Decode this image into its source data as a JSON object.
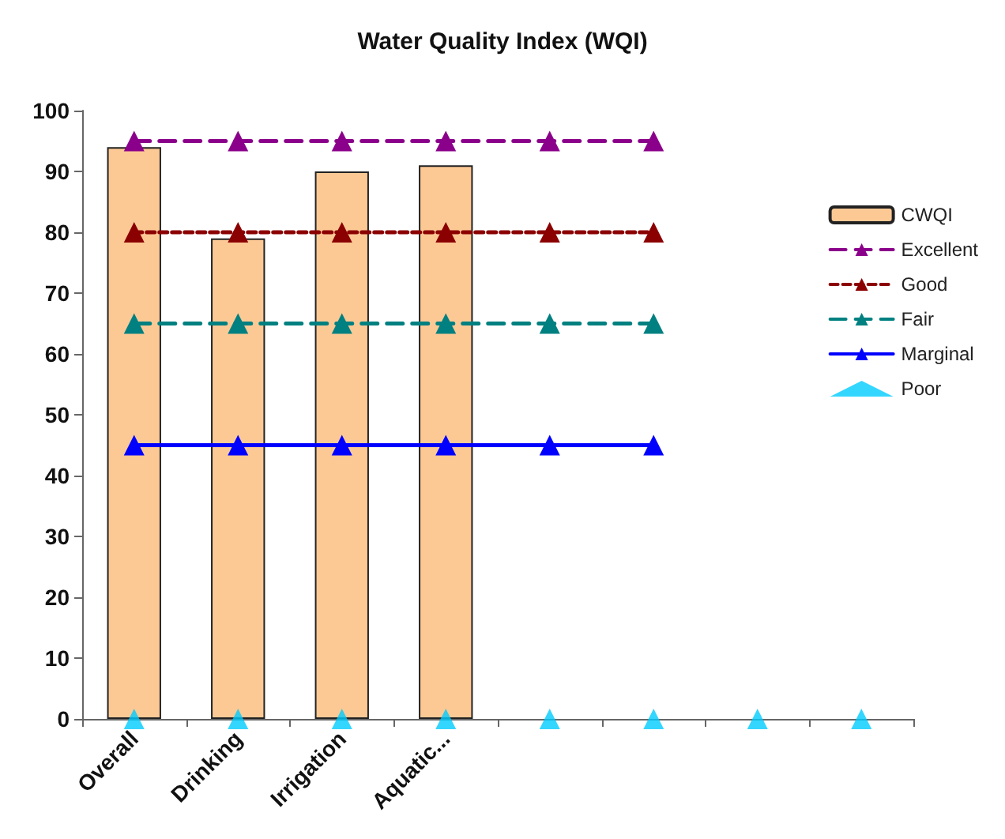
{
  "chart_data": {
    "type": "bar",
    "title": "Water Quality Index (WQI)",
    "categories": [
      "Overall",
      "Drinking",
      "Irrigation",
      "Aquatic...",
      null,
      null,
      null,
      null
    ],
    "series": [
      {
        "name": "CWQI",
        "color": "#fcc995",
        "values": [
          94,
          79,
          90,
          91,
          null,
          null,
          null,
          null
        ]
      },
      {
        "name": "Excellent",
        "type": "line",
        "color": "#8b008b",
        "line_style": "dashed",
        "marker": "triangle",
        "values": [
          95,
          95,
          95,
          95,
          95,
          95,
          null,
          null
        ]
      },
      {
        "name": "Good",
        "type": "line",
        "color": "#8b0000",
        "line_style": "dotted",
        "marker": "triangle",
        "values": [
          80,
          80,
          80,
          80,
          80,
          80,
          null,
          null
        ]
      },
      {
        "name": "Fair",
        "type": "line",
        "color": "#008080",
        "line_style": "dashed",
        "marker": "triangle",
        "values": [
          65,
          65,
          65,
          65,
          65,
          65,
          null,
          null
        ]
      },
      {
        "name": "Marginal",
        "type": "line",
        "color": "#0000ff",
        "line_style": "solid",
        "marker": "triangle",
        "values": [
          45,
          45,
          45,
          45,
          45,
          45,
          null,
          null
        ]
      },
      {
        "name": "Poor",
        "type": "scatter",
        "color": "#00ccff",
        "marker": "triangle",
        "values": [
          0,
          0,
          0,
          0,
          0,
          0,
          0,
          0
        ]
      }
    ],
    "ylim": [
      0,
      100
    ],
    "yticks": [
      0,
      10,
      20,
      30,
      40,
      50,
      60,
      70,
      80,
      90,
      100
    ],
    "grid": false,
    "legend": "top right"
  }
}
